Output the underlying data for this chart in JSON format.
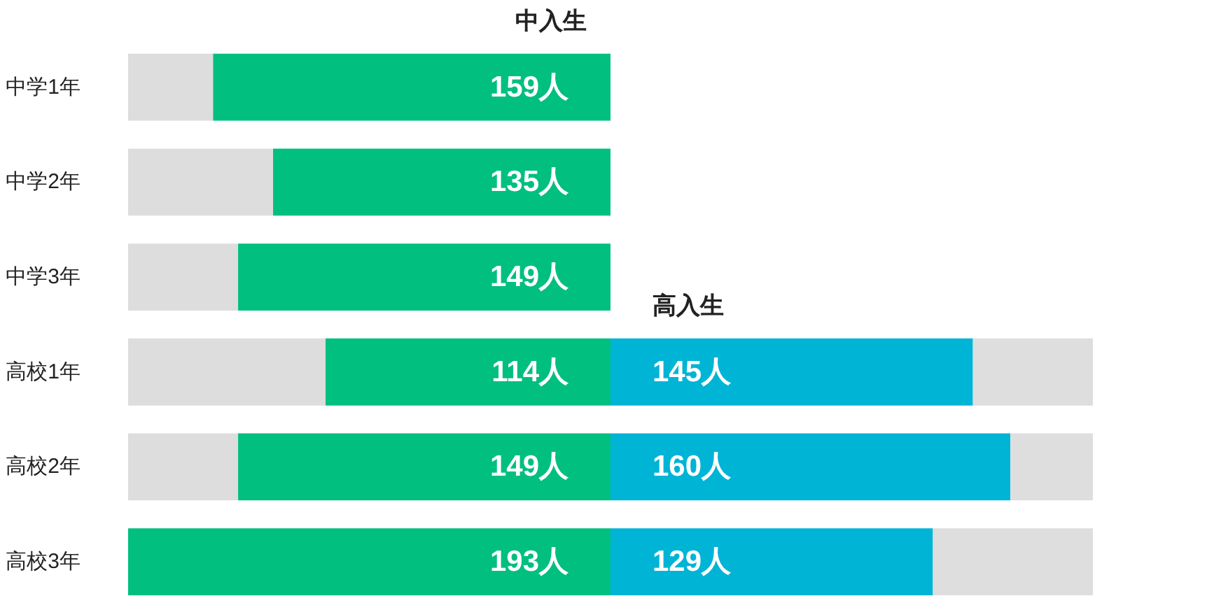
{
  "chart_data": {
    "type": "bar",
    "orientation": "horizontal",
    "stacked": true,
    "grid": false,
    "tick_labels": "y",
    "categories": [
      "中学1年",
      "中学2年",
      "中学3年",
      "高校1年",
      "高校2年",
      "高校3年"
    ],
    "xlim": [
      0,
      386
    ],
    "series": [
      {
        "color": "#dddddd",
        "values": [
          34,
          58,
          44,
          79,
          44,
          0
        ]
      },
      {
        "name": "中入生",
        "color": "#00bf7f",
        "values": [
          159,
          135,
          149,
          114,
          149,
          193
        ],
        "value_labels": [
          "159人",
          "135人",
          "149人",
          "114人",
          "149人",
          "193人"
        ]
      },
      {
        "name": "高入生",
        "color": "#00b4d6",
        "values": [
          null,
          null,
          null,
          145,
          160,
          129
        ],
        "value_labels": [
          null,
          null,
          null,
          "145人",
          "160人",
          "129人"
        ]
      },
      {
        "color": "#dedede",
        "values": [
          null,
          null,
          null,
          48,
          33,
          64
        ]
      }
    ]
  }
}
